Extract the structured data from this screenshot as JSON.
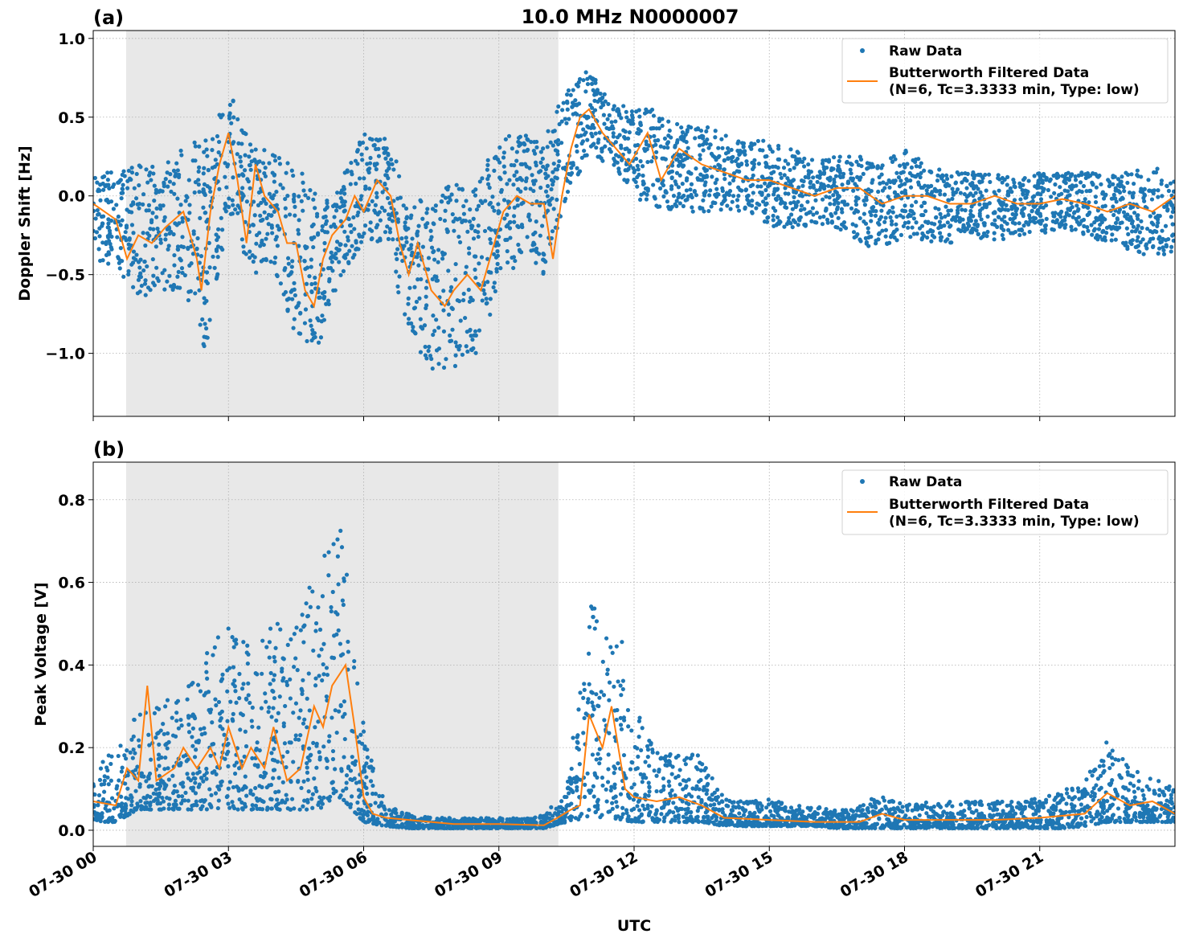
{
  "colors": {
    "raw": "#1f77b4",
    "filtered": "#ff7f0e",
    "shade": "#e8e8e8"
  },
  "shared_x": {
    "label": "UTC",
    "range_hours": [
      0,
      24
    ],
    "tick_hours": [
      0,
      3,
      6,
      9,
      12,
      15,
      18,
      21
    ],
    "tick_labels": [
      "07-30 00",
      "07-30 03",
      "07-30 06",
      "07-30 09",
      "07-30 12",
      "07-30 15",
      "07-30 18",
      "07-30 21"
    ],
    "shaded_interval_hours": [
      0.73,
      10.32
    ]
  },
  "chart_data": [
    {
      "type": "scatter+line",
      "panel_label": "(a)",
      "title": "10.0 MHz N0000007",
      "xlabel": "",
      "ylabel": "Doppler Shift [Hz]",
      "ylim": [
        -1.4,
        1.05
      ],
      "yticks": [
        1.0,
        0.5,
        0.0,
        -0.5,
        -1.0
      ],
      "ytick_labels": [
        "1.0",
        "0.5",
        "0.0",
        "−0.5",
        "−1.0"
      ],
      "grid": true,
      "legend": {
        "placement": "top-right",
        "entries": [
          "Raw Data",
          "Butterworth Filtered Data",
          "(N=6, Tc=3.3333 min, Type: low)"
        ]
      },
      "raw_envelope": {
        "x": [
          0,
          0.5,
          1,
          1.5,
          2,
          2.5,
          3,
          3.5,
          4,
          4.5,
          5,
          5.5,
          6,
          6.5,
          7,
          7.5,
          8,
          8.5,
          9,
          9.5,
          10,
          10.5,
          11,
          11.5,
          12,
          12.5,
          13,
          13.5,
          14,
          14.5,
          15,
          15.5,
          16,
          16.5,
          17,
          17.5,
          18,
          18.5,
          19,
          19.5,
          20,
          20.5,
          21,
          21.5,
          22,
          22.5,
          23,
          23.5,
          24
        ],
        "low": [
          -0.4,
          -0.45,
          -0.65,
          -0.6,
          -0.6,
          -1.0,
          -0.1,
          -0.5,
          -0.45,
          -0.9,
          -0.95,
          -0.5,
          -0.3,
          -0.3,
          -0.9,
          -1.1,
          -1.1,
          -1.0,
          -0.6,
          -0.4,
          -0.5,
          0.0,
          0.25,
          0.2,
          0.0,
          -0.1,
          -0.1,
          -0.1,
          -0.1,
          -0.1,
          -0.2,
          -0.2,
          -0.2,
          -0.2,
          -0.3,
          -0.35,
          -0.25,
          -0.3,
          -0.3,
          -0.25,
          -0.3,
          -0.25,
          -0.25,
          -0.2,
          -0.25,
          -0.3,
          -0.35,
          -0.4,
          -0.35
        ],
        "high": [
          0.15,
          0.15,
          0.2,
          0.2,
          0.3,
          0.4,
          0.7,
          0.35,
          0.3,
          0.2,
          0.0,
          0.1,
          0.4,
          0.4,
          0.0,
          -0.05,
          0.1,
          0.05,
          0.4,
          0.4,
          0.35,
          0.7,
          0.8,
          0.6,
          0.55,
          0.55,
          0.45,
          0.45,
          0.4,
          0.35,
          0.35,
          0.3,
          0.25,
          0.25,
          0.25,
          0.2,
          0.3,
          0.2,
          0.15,
          0.15,
          0.15,
          0.1,
          0.15,
          0.15,
          0.15,
          0.15,
          0.15,
          0.2,
          0.1
        ]
      },
      "filtered": {
        "x": [
          0,
          0.5,
          0.75,
          1.0,
          1.3,
          1.6,
          2.0,
          2.3,
          2.4,
          2.6,
          2.8,
          3.0,
          3.2,
          3.4,
          3.6,
          3.8,
          4.1,
          4.3,
          4.5,
          4.7,
          4.9,
          5.1,
          5.3,
          5.6,
          5.8,
          6.0,
          6.3,
          6.6,
          6.8,
          7.0,
          7.2,
          7.5,
          7.8,
          8.0,
          8.3,
          8.6,
          8.9,
          9.1,
          9.4,
          9.7,
          10.0,
          10.2,
          10.4,
          10.6,
          10.8,
          11.0,
          11.3,
          11.6,
          11.9,
          12.1,
          12.3,
          12.6,
          13.0,
          13.5,
          14.0,
          14.5,
          15,
          15.5,
          16,
          16.5,
          17,
          17.5,
          18,
          18.5,
          19,
          19.5,
          20,
          20.5,
          21,
          21.5,
          22,
          22.5,
          23,
          23.5,
          24
        ],
        "y": [
          -0.05,
          -0.15,
          -0.4,
          -0.25,
          -0.3,
          -0.2,
          -0.1,
          -0.4,
          -0.6,
          -0.1,
          0.2,
          0.4,
          0.1,
          -0.3,
          0.2,
          0.0,
          -0.1,
          -0.3,
          -0.3,
          -0.6,
          -0.7,
          -0.4,
          -0.25,
          -0.15,
          0.0,
          -0.1,
          0.1,
          0.0,
          -0.3,
          -0.5,
          -0.3,
          -0.6,
          -0.7,
          -0.6,
          -0.5,
          -0.6,
          -0.3,
          -0.1,
          0.0,
          -0.05,
          -0.05,
          -0.4,
          0.0,
          0.3,
          0.5,
          0.55,
          0.4,
          0.3,
          0.2,
          0.3,
          0.4,
          0.1,
          0.3,
          0.2,
          0.15,
          0.1,
          0.1,
          0.05,
          0.0,
          0.05,
          0.05,
          -0.05,
          0.0,
          0.0,
          -0.05,
          -0.05,
          0.0,
          -0.05,
          -0.05,
          -0.02,
          -0.05,
          -0.1,
          -0.05,
          -0.1,
          0.0
        ]
      }
    },
    {
      "type": "scatter+line",
      "panel_label": "(b)",
      "title": "",
      "xlabel": "UTC",
      "ylabel": "Peak Voltage [V]",
      "ylim": [
        -0.039,
        0.891
      ],
      "yticks": [
        0.0,
        0.2,
        0.4,
        0.6,
        0.8
      ],
      "ytick_labels": [
        "0.0",
        "0.2",
        "0.4",
        "0.6",
        "0.8"
      ],
      "grid": true,
      "legend": {
        "placement": "top-right",
        "entries": [
          "Raw Data",
          "Butterworth Filtered Data",
          "(N=6, Tc=3.3333 min, Type: low)"
        ]
      },
      "raw_envelope": {
        "x": [
          0,
          0.5,
          1,
          1.5,
          2,
          2.5,
          3,
          3.5,
          4,
          4.5,
          5,
          5.5,
          6,
          6.5,
          7,
          7.5,
          8,
          8.5,
          9,
          9.5,
          10,
          10.5,
          11,
          11.5,
          12,
          12.5,
          13,
          13.5,
          14,
          14.5,
          15,
          15.5,
          16,
          16.5,
          17,
          17.5,
          18,
          18.5,
          19,
          19.5,
          20,
          20.5,
          21,
          21.5,
          22,
          22.5,
          23,
          23.5,
          24
        ],
        "low": [
          0.02,
          0.02,
          0.05,
          0.05,
          0.05,
          0.05,
          0.05,
          0.05,
          0.05,
          0.05,
          0.05,
          0.08,
          0.02,
          0.01,
          0.005,
          0.005,
          0.005,
          0.005,
          0.005,
          0.005,
          0.005,
          0.02,
          0.03,
          0.03,
          0.02,
          0.02,
          0.02,
          0.02,
          0.01,
          0.01,
          0.01,
          0.01,
          0.01,
          0.005,
          0.005,
          0.005,
          0.005,
          0.005,
          0.005,
          0.005,
          0.005,
          0.005,
          0.005,
          0.005,
          0.01,
          0.02,
          0.02,
          0.02,
          0.02
        ],
        "high": [
          0.15,
          0.2,
          0.3,
          0.3,
          0.35,
          0.45,
          0.5,
          0.45,
          0.5,
          0.5,
          0.65,
          0.75,
          0.25,
          0.06,
          0.04,
          0.03,
          0.03,
          0.03,
          0.03,
          0.03,
          0.04,
          0.1,
          0.55,
          0.6,
          0.3,
          0.2,
          0.2,
          0.18,
          0.08,
          0.07,
          0.08,
          0.06,
          0.06,
          0.05,
          0.06,
          0.09,
          0.06,
          0.07,
          0.07,
          0.07,
          0.07,
          0.07,
          0.08,
          0.1,
          0.12,
          0.22,
          0.15,
          0.13,
          0.1
        ]
      },
      "filtered": {
        "x": [
          0,
          0.5,
          0.75,
          1.0,
          1.2,
          1.4,
          1.8,
          2.0,
          2.3,
          2.6,
          2.8,
          3.0,
          3.3,
          3.5,
          3.8,
          4.0,
          4.3,
          4.6,
          4.9,
          5.1,
          5.3,
          5.6,
          5.8,
          6.0,
          6.2,
          6.5,
          7,
          8,
          9,
          10,
          10.3,
          10.6,
          10.8,
          11.0,
          11.3,
          11.5,
          11.8,
          12,
          12.5,
          13,
          13.5,
          14,
          15,
          16,
          17,
          17.5,
          18,
          19,
          20,
          21,
          22,
          22.5,
          23,
          23.5,
          24
        ],
        "y": [
          0.07,
          0.06,
          0.15,
          0.12,
          0.35,
          0.12,
          0.15,
          0.2,
          0.15,
          0.2,
          0.15,
          0.25,
          0.15,
          0.2,
          0.15,
          0.25,
          0.12,
          0.15,
          0.3,
          0.25,
          0.35,
          0.4,
          0.25,
          0.08,
          0.04,
          0.03,
          0.025,
          0.015,
          0.015,
          0.012,
          0.03,
          0.05,
          0.06,
          0.28,
          0.2,
          0.3,
          0.1,
          0.08,
          0.07,
          0.08,
          0.06,
          0.03,
          0.025,
          0.02,
          0.02,
          0.04,
          0.025,
          0.025,
          0.025,
          0.03,
          0.04,
          0.09,
          0.06,
          0.07,
          0.04
        ]
      }
    }
  ]
}
